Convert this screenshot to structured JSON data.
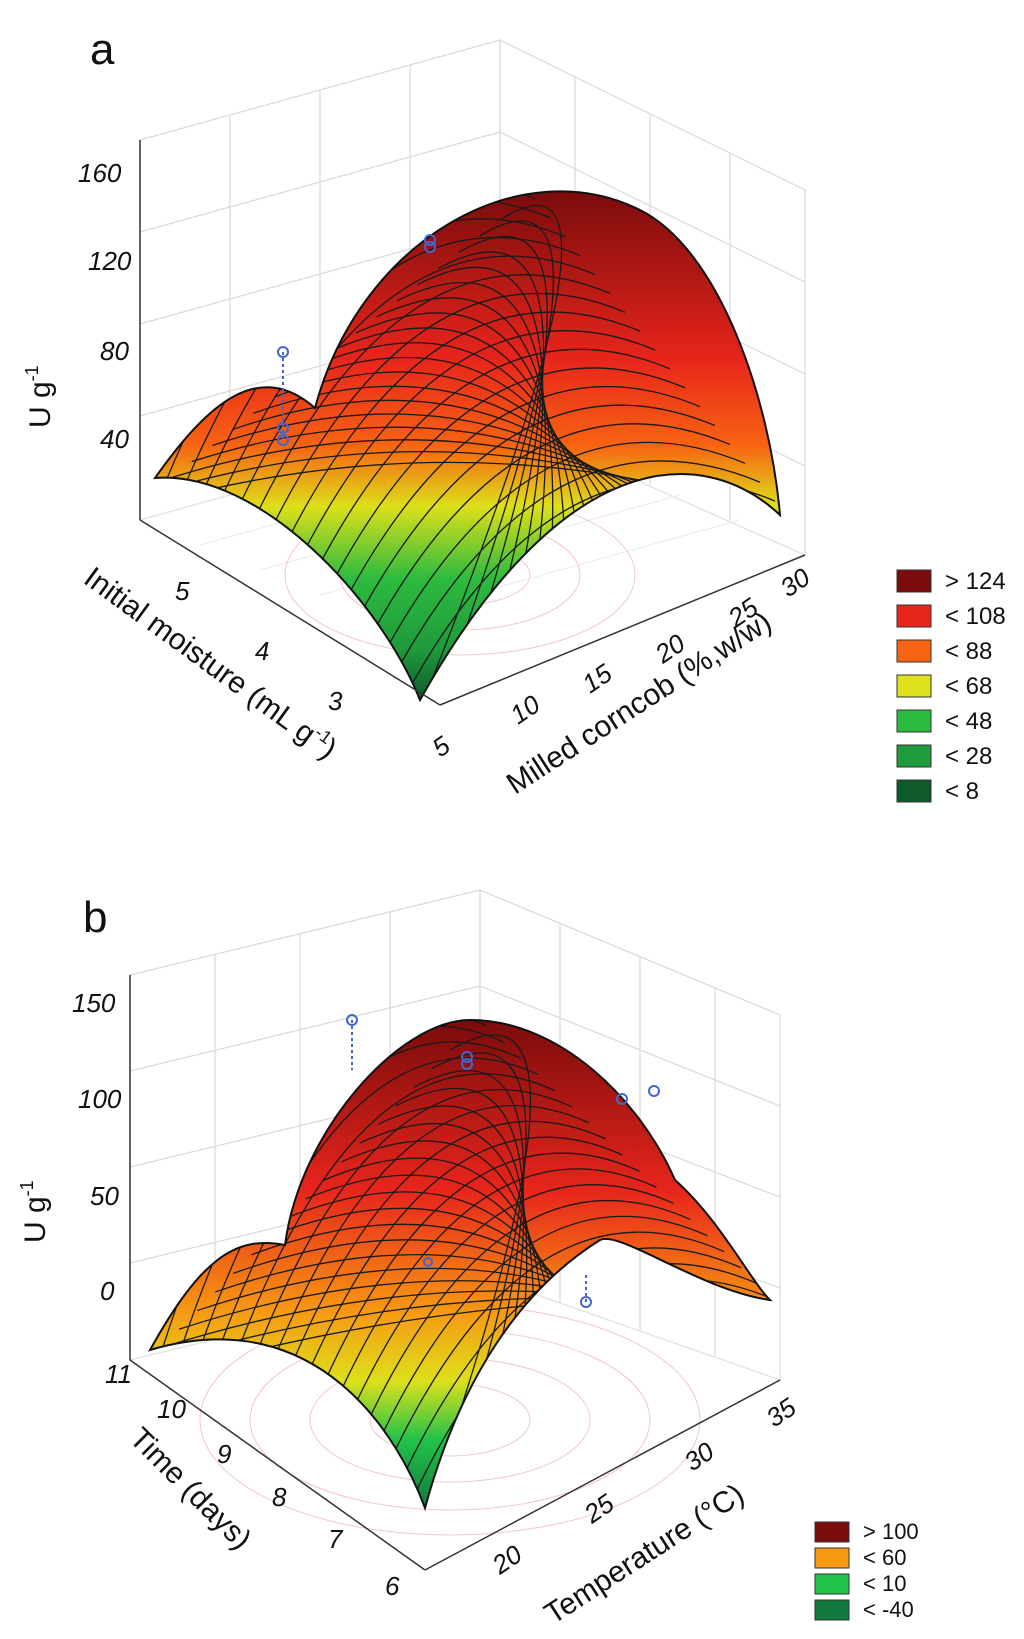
{
  "chart_data": [
    {
      "type": "surface3d",
      "panel": "a",
      "zlabel": "U g⁻¹",
      "zlabel_main": "U g",
      "zlabel_sup": "-1",
      "xlabel": "Milled corncob (%,w/w)",
      "ylabel": "Initial moisture (mL g",
      "ylabel_sup": "-1",
      "ylabel_close": ")",
      "z_ticks": [
        "40",
        "80",
        "120",
        "160"
      ],
      "x_ticks": [
        "5",
        "10",
        "15",
        "20",
        "25",
        "30"
      ],
      "y_ticks": [
        "3",
        "4",
        "5"
      ],
      "legend": [
        {
          "label": "> 124",
          "color": "#7a0c0c"
        },
        {
          "label": "< 108",
          "color": "#e8251c"
        },
        {
          "label": "< 88",
          "color": "#f76412"
        },
        {
          "label": "< 68",
          "color": "#dde01a"
        },
        {
          "label": "< 48",
          "color": "#2dbb3f"
        },
        {
          "label": "< 28",
          "color": "#1f9a3c"
        },
        {
          "label": "< 8",
          "color": "#0e5a2a"
        }
      ]
    },
    {
      "type": "surface3d",
      "panel": "b",
      "zlabel": "U g⁻¹",
      "zlabel_main": "U g",
      "zlabel_sup": "-1",
      "xlabel": "Temperature (°C)",
      "ylabel": "Time (days)",
      "z_ticks": [
        "0",
        "50",
        "100",
        "150"
      ],
      "x_ticks": [
        "20",
        "25",
        "30",
        "35"
      ],
      "y_ticks": [
        "6",
        "7",
        "8",
        "9",
        "10",
        "11"
      ],
      "legend": [
        {
          "label": "> 100",
          "color": "#7a0c0c"
        },
        {
          "label": "< 60",
          "color": "#f79a12"
        },
        {
          "label": "< 10",
          "color": "#22c24a"
        },
        {
          "label": "< -40",
          "color": "#127a3c"
        }
      ]
    }
  ]
}
